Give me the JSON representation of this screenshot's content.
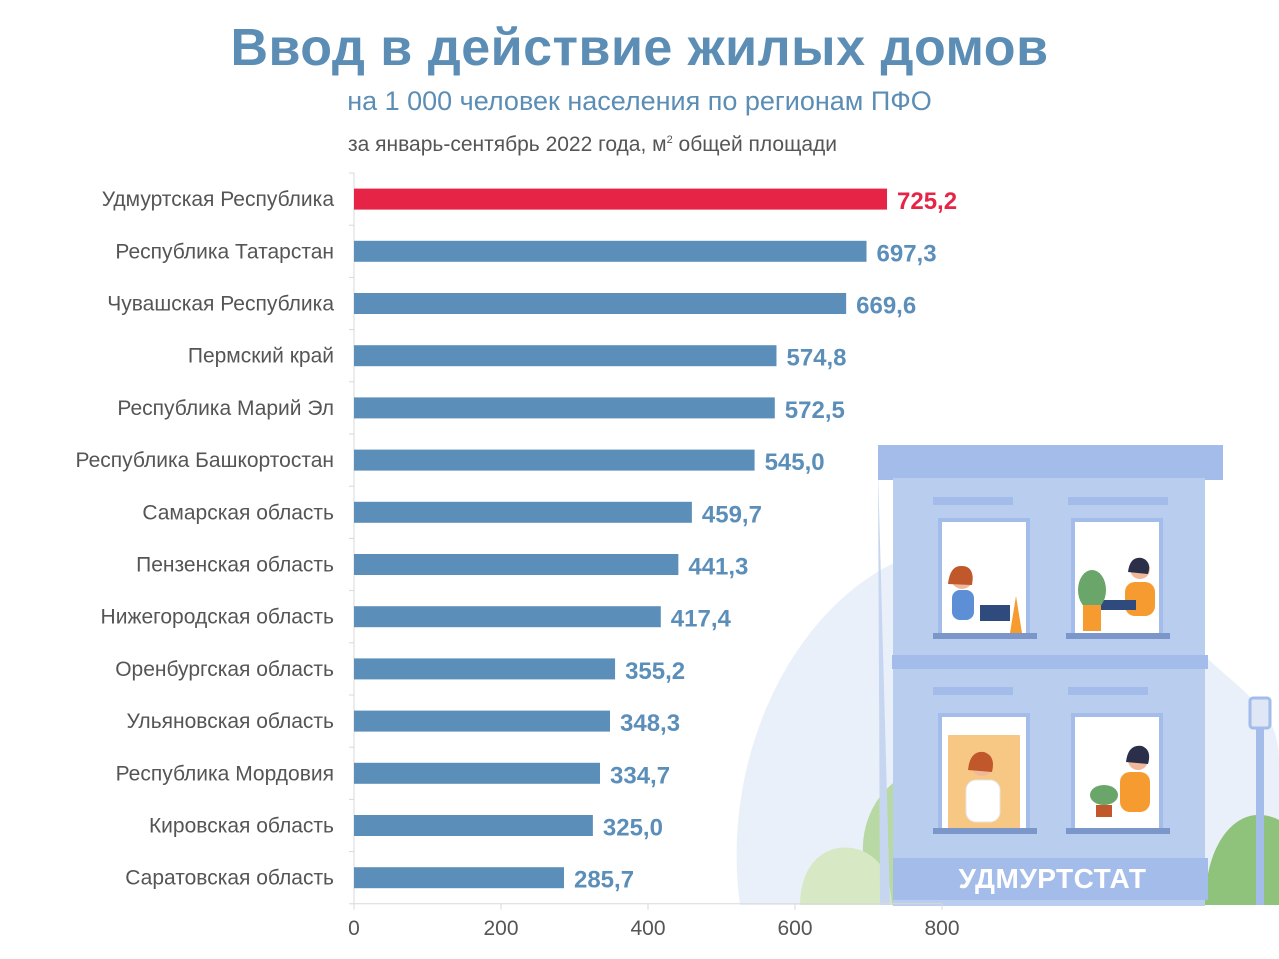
{
  "header": {
    "title": "Ввод в действие жилых домов",
    "subtitle": "на 1 000 человек населения по регионам ПФО",
    "note_before": "за январь-сентябрь 2022 года, м",
    "note_sup": "2",
    "note_after": " общей площади"
  },
  "brand": {
    "label": "УДМУРТСТАТ"
  },
  "colors": {
    "accent": "#e52446",
    "bar": "#5b8fb9",
    "title": "#5b8db5",
    "building": "#a3bcea"
  },
  "chart_data": {
    "type": "bar",
    "orientation": "horizontal",
    "categories": [
      "Удмуртская Республика",
      "Республика Татарстан",
      "Чувашская Республика",
      "Пермский край",
      "Республика  Марий Эл",
      "Республика Башкортостан",
      "Самарская область",
      "Пензенская область",
      "Нижегородская область",
      "Оренбургская область",
      "Ульяновская область",
      "Республика Мордовия",
      "Кировская область",
      "Саратовская область"
    ],
    "values": [
      725.2,
      697.3,
      669.6,
      574.8,
      572.5,
      545.0,
      459.7,
      441.3,
      417.4,
      355.2,
      348.3,
      334.7,
      325.0,
      285.7
    ],
    "value_labels": [
      "725,2",
      "697,3",
      "669,6",
      "574,8",
      "572,5",
      "545,0",
      "459,7",
      "441,3",
      "417,4",
      "355,2",
      "348,3",
      "334,7",
      "325,0",
      "285,7"
    ],
    "highlight_index": 0,
    "xlim": [
      0,
      800
    ],
    "xticks": [
      0,
      200,
      400,
      600,
      800
    ],
    "grid": false,
    "legend": "none"
  }
}
